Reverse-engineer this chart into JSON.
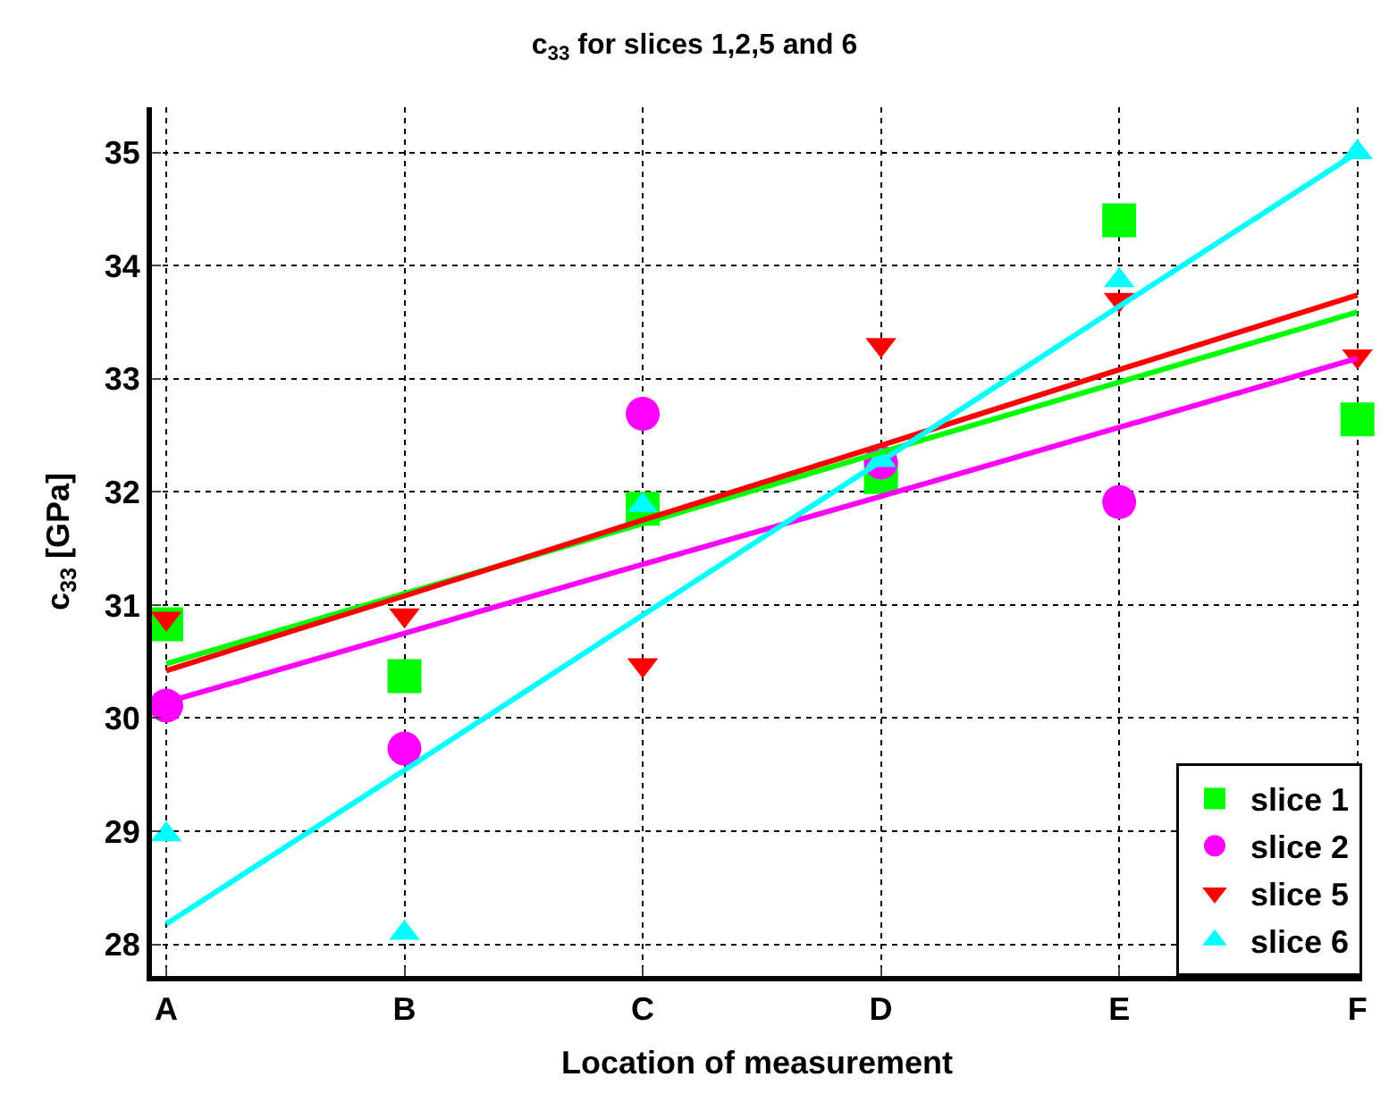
{
  "chart_data": {
    "type": "scatter",
    "title": "c$_{33}$ for slices 1,2,5 and 6",
    "xlabel": "Location of measurement",
    "ylabel": "c$_{33}$ [GPa]",
    "categories": [
      "A",
      "B",
      "C",
      "D",
      "E",
      "F"
    ],
    "series": [
      {
        "name": "slice 1",
        "color": "#00ff00",
        "marker": "square",
        "values": [
          30.83,
          30.37,
          31.85,
          32.13,
          34.4,
          32.64
        ]
      },
      {
        "type": "line",
        "color": "#00ff00",
        "values": [
          30.48,
          31.1,
          31.72,
          32.35,
          32.97,
          33.59
        ]
      },
      {
        "name": "slice 2",
        "color": "#ff00ff",
        "marker": "circle",
        "values": [
          30.11,
          29.73,
          32.69,
          32.26,
          31.91,
          null
        ]
      },
      {
        "type": "line",
        "color": "#ff00ff",
        "values": [
          30.14,
          30.75,
          31.36,
          31.96,
          32.57,
          33.18
        ]
      },
      {
        "name": "slice 5",
        "color": "#ff0000",
        "marker": "triangle-down",
        "values": [
          30.88,
          30.91,
          30.47,
          33.3,
          33.7,
          33.2
        ]
      },
      {
        "type": "line",
        "color": "#ff0000",
        "values": [
          30.42,
          31.08,
          31.75,
          32.41,
          33.08,
          33.74
        ]
      },
      {
        "name": "slice 6",
        "color": "#00ffff",
        "marker": "triangle",
        "values": [
          28.97,
          28.1,
          31.88,
          32.28,
          33.87,
          35.0
        ]
      },
      {
        "type": "line",
        "color": "#00ffff",
        "values": [
          28.18,
          29.54,
          30.91,
          32.27,
          33.64,
          35.0
        ]
      }
    ],
    "ylim": [
      27.72,
      35.4
    ],
    "yticks": [
      28,
      29,
      30,
      31,
      32,
      33,
      34,
      35
    ],
    "grid": true,
    "legend": "bottom right",
    "line_style": "solid"
  }
}
